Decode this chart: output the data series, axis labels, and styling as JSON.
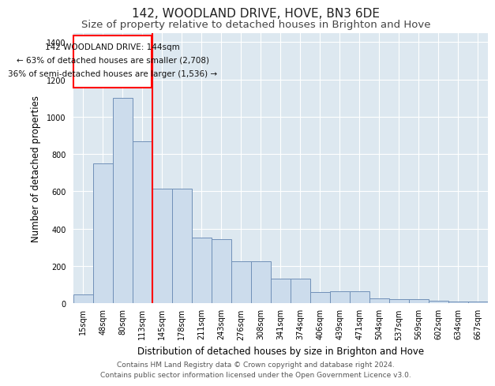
{
  "title": "142, WOODLAND DRIVE, HOVE, BN3 6DE",
  "subtitle": "Size of property relative to detached houses in Brighton and Hove",
  "xlabel": "Distribution of detached houses by size in Brighton and Hove",
  "ylabel": "Number of detached properties",
  "footnote1": "Contains HM Land Registry data © Crown copyright and database right 2024.",
  "footnote2": "Contains public sector information licensed under the Open Government Licence v3.0.",
  "annotation_line1": "142 WOODLAND DRIVE: 144sqm",
  "annotation_line2": "← 63% of detached houses are smaller (2,708)",
  "annotation_line3": "36% of semi-detached houses are larger (1,536) →",
  "bar_labels": [
    "15sqm",
    "48sqm",
    "80sqm",
    "113sqm",
    "145sqm",
    "178sqm",
    "211sqm",
    "243sqm",
    "276sqm",
    "308sqm",
    "341sqm",
    "374sqm",
    "406sqm",
    "439sqm",
    "471sqm",
    "504sqm",
    "537sqm",
    "569sqm",
    "602sqm",
    "634sqm",
    "667sqm"
  ],
  "bar_values": [
    45,
    750,
    1100,
    870,
    615,
    615,
    350,
    345,
    225,
    225,
    130,
    130,
    60,
    65,
    65,
    25,
    22,
    20,
    12,
    8,
    10
  ],
  "bar_color": "#ccdcec",
  "bar_edgecolor": "#7090b8",
  "ylim": [
    0,
    1450
  ],
  "yticks": [
    0,
    200,
    400,
    600,
    800,
    1000,
    1200,
    1400
  ],
  "bg_color": "#ffffff",
  "plot_bg_color": "#dde8f0",
  "grid_color": "#ffffff",
  "title_fontsize": 11,
  "subtitle_fontsize": 9.5,
  "axis_label_fontsize": 8.5,
  "tick_fontsize": 7,
  "footnote_fontsize": 6.5,
  "annotation_fontsize": 7.5
}
